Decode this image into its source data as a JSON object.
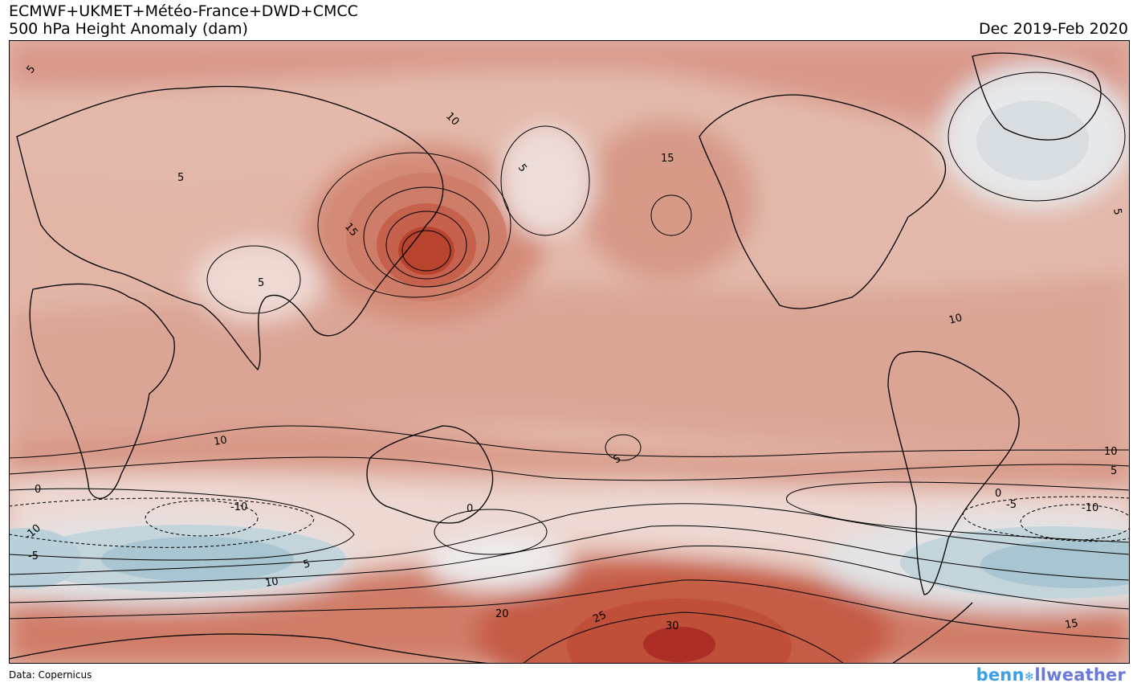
{
  "header": {
    "models": "ECMWF+UKMET+Météo-France+DWD+CMCC",
    "variable": "500 hPa Height Anomaly (dam)",
    "period": "Dec 2019-Feb 2020"
  },
  "footer": {
    "data_source": "Data: Copernicus",
    "brand_part1": "benn",
    "brand_part2": "llweather",
    "brand_icon": "snowflake-icon"
  },
  "map": {
    "projection": "equirectangular, Pacific-centered",
    "colors": {
      "positive_max": "#b3322a",
      "positive_mid": "#d4907c",
      "positive_low": "#e6c2b6",
      "near_zero": "#f0e8e6",
      "negative_low": "#cfdce2",
      "negative_max": "#9dbfcc"
    },
    "contour_labels": [
      {
        "value": "5"
      },
      {
        "value": "5"
      },
      {
        "value": "5"
      },
      {
        "value": "10"
      },
      {
        "value": "15"
      },
      {
        "value": "15"
      },
      {
        "value": "5"
      },
      {
        "value": "10"
      },
      {
        "value": "10"
      },
      {
        "value": "5"
      },
      {
        "value": "0"
      },
      {
        "value": "-10"
      },
      {
        "value": "-10"
      },
      {
        "value": "-5"
      },
      {
        "value": "0"
      },
      {
        "value": "5"
      },
      {
        "value": "10"
      },
      {
        "value": "20"
      },
      {
        "value": "25"
      },
      {
        "value": "30"
      },
      {
        "value": "15"
      },
      {
        "value": "10"
      },
      {
        "value": "5"
      },
      {
        "value": "0"
      },
      {
        "value": "-5"
      },
      {
        "value": "-10"
      },
      {
        "value": "5"
      }
    ]
  }
}
